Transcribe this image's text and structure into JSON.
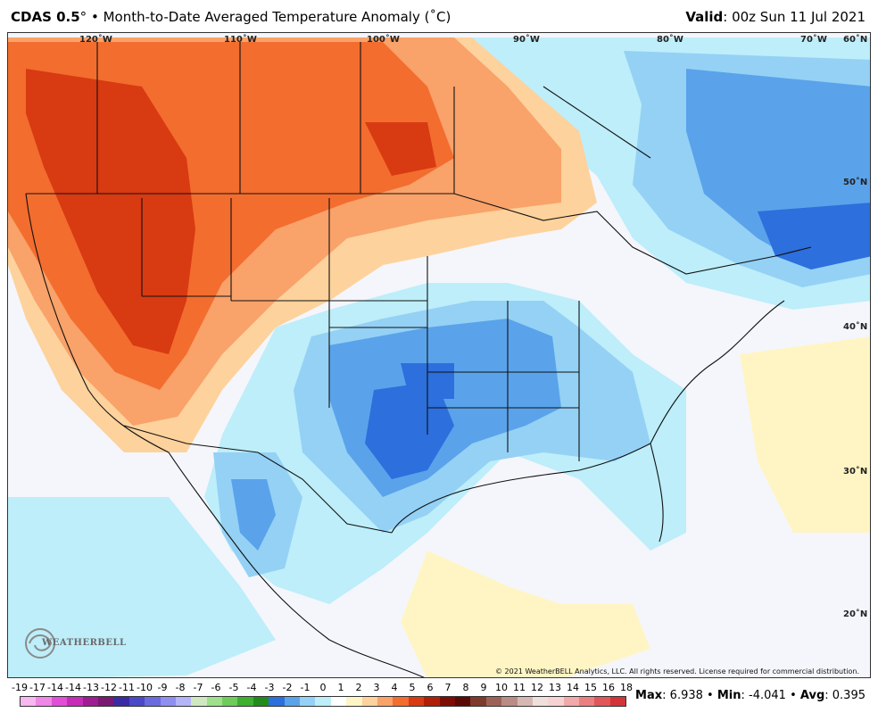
{
  "header": {
    "model": "CDAS 0.5",
    "degree_symbol": "°",
    "bullet": "•",
    "product": "Month-to-Date Averaged Temperature Anomaly (˚C)",
    "valid_label": "Valid",
    "valid_value": ": 00z Sun 11 Jul 2021"
  },
  "map": {
    "longitudes": [
      "120˚W",
      "110˚W",
      "100˚W",
      "90˚W",
      "80˚W",
      "70˚W",
      "60˚N"
    ],
    "latitudes": [
      "50˚N",
      "40˚N",
      "30˚N",
      "20˚N"
    ],
    "copyright": "© 2021 WeatherBELL Analytics, LLC. All rights reserved. License required for commercial distribution.",
    "logo_text": "WEATHERBELL",
    "colors": {
      "ocean": "#f4f6fb",
      "land_background": "#f7f8fc",
      "strong_warm": "#d83a12",
      "warm": "#f36d2e",
      "mild_warm": "#f9a26a",
      "slight_warm": "#fdd29c",
      "near_zero_warm": "#fff5c4",
      "near_zero_cool": "#bdeefa",
      "slight_cool": "#94d1f5",
      "cool": "#5aa3eb",
      "strong_cool": "#2d6fdc"
    }
  },
  "legend": {
    "ticks": [
      "-19",
      "-17",
      "-14",
      "-14",
      "-13",
      "-12",
      "-11",
      "-10",
      "-9",
      "-8",
      "-7",
      "-6",
      "-5",
      "-4",
      "-3",
      "-2",
      "-1",
      "0",
      "1",
      "2",
      "3",
      "4",
      "5",
      "6",
      "7",
      "8",
      "9",
      "10",
      "11",
      "12",
      "13",
      "14",
      "15",
      "16",
      "18"
    ],
    "colors": [
      "#f7b7f0",
      "#ee87e6",
      "#e04fd6",
      "#c62cb8",
      "#9e1d92",
      "#7a1873",
      "#3a2ba4",
      "#4a49c8",
      "#6b6be0",
      "#8f8ff0",
      "#b4b4fa",
      "#cfe8c0",
      "#9ee08c",
      "#6fcc5b",
      "#3db02f",
      "#218c1c",
      "#2d6fdc",
      "#5aa3eb",
      "#94d1f5",
      "#bdeefa",
      "#ffffff",
      "#fff5c4",
      "#fdd29c",
      "#f9a26a",
      "#f36d2e",
      "#d83a12",
      "#b01f08",
      "#7d0d04",
      "#5a0a06",
      "#7e3a2c",
      "#9c6258",
      "#b98d85",
      "#d6b8b2",
      "#f0e0dd",
      "#f7d2d2",
      "#f2a9aa",
      "#ea7f82",
      "#e05659",
      "#d23438"
    ]
  },
  "stats": {
    "max_label": "Max",
    "max_value": ": 6.938",
    "min_label": "Min",
    "min_value": ": -4.041",
    "avg_label": "Avg",
    "avg_value": ": 0.395",
    "separator": "•"
  }
}
